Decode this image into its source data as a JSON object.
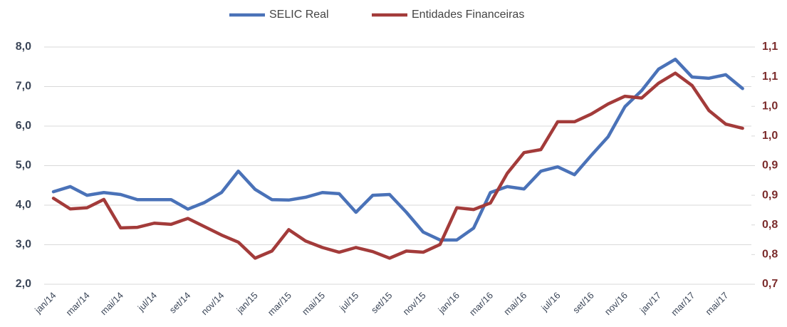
{
  "chart_data": {
    "type": "line",
    "categories": [
      "jan/14",
      null,
      "mar/14",
      null,
      "mai/14",
      null,
      "jul/14",
      null,
      "set/14",
      null,
      "nov/14",
      null,
      "jan/15",
      null,
      "mar/15",
      null,
      "mai/15",
      null,
      "jul/15",
      null,
      "set/15",
      null,
      "nov/15",
      null,
      "jan/16",
      null,
      "mar/16",
      null,
      "mai/16",
      null,
      "jul/16",
      null,
      "set/16",
      null,
      "nov/16",
      null,
      "jan/17",
      null,
      "mar/17",
      null,
      "mai/17",
      null
    ],
    "series": [
      {
        "name": "SELIC Real",
        "color": "#4a72b8",
        "axis": "y",
        "values": [
          4.34,
          4.47,
          4.25,
          4.32,
          4.27,
          4.14,
          4.14,
          4.14,
          3.9,
          4.07,
          4.32,
          4.86,
          4.4,
          4.14,
          4.13,
          4.2,
          4.32,
          4.29,
          3.82,
          4.25,
          4.27,
          3.82,
          3.32,
          3.12,
          3.12,
          3.42,
          4.32,
          4.47,
          4.41,
          4.86,
          4.97,
          4.77,
          5.26,
          5.73,
          6.49,
          6.9,
          7.44,
          7.69,
          7.24,
          7.21,
          7.3,
          6.95
        ]
      },
      {
        "name": "Entidades Financeiras",
        "color": "#a33b3a",
        "axis": "y2",
        "values": [
          0.845,
          0.827,
          0.829,
          0.843,
          0.795,
          0.796,
          0.803,
          0.801,
          0.811,
          0.797,
          0.783,
          0.771,
          0.744,
          0.756,
          0.792,
          0.773,
          0.762,
          0.754,
          0.762,
          0.755,
          0.744,
          0.756,
          0.754,
          0.767,
          0.829,
          0.826,
          0.837,
          0.887,
          0.922,
          0.927,
          0.974,
          0.974,
          0.987,
          1.004,
          1.017,
          1.014,
          1.039,
          1.056,
          1.035,
          0.993,
          0.97,
          0.963
        ]
      }
    ],
    "ylim": [
      2,
      8
    ],
    "yticks": [
      {
        "value": 2,
        "label": "2,0"
      },
      {
        "value": 3,
        "label": "3,0"
      },
      {
        "value": 4,
        "label": "4,0"
      },
      {
        "value": 5,
        "label": "5,0"
      },
      {
        "value": 6,
        "label": "6,0"
      },
      {
        "value": 7,
        "label": "7,0"
      },
      {
        "value": 8,
        "label": "8,0"
      }
    ],
    "y2lim": [
      0.7,
      1.1
    ],
    "y2ticks": [
      {
        "value": 0.7,
        "label": "0,7"
      },
      {
        "value": 0.75,
        "label": "0,8"
      },
      {
        "value": 0.8,
        "label": "0,8"
      },
      {
        "value": 0.85,
        "label": "0,9"
      },
      {
        "value": 0.9,
        "label": "0,9"
      },
      {
        "value": 0.95,
        "label": "1,0"
      },
      {
        "value": 1.0,
        "label": "1,0"
      },
      {
        "value": 1.05,
        "label": "1,1"
      },
      {
        "value": 1.1,
        "label": "1,1"
      }
    ],
    "grid": true,
    "legend": "top"
  }
}
